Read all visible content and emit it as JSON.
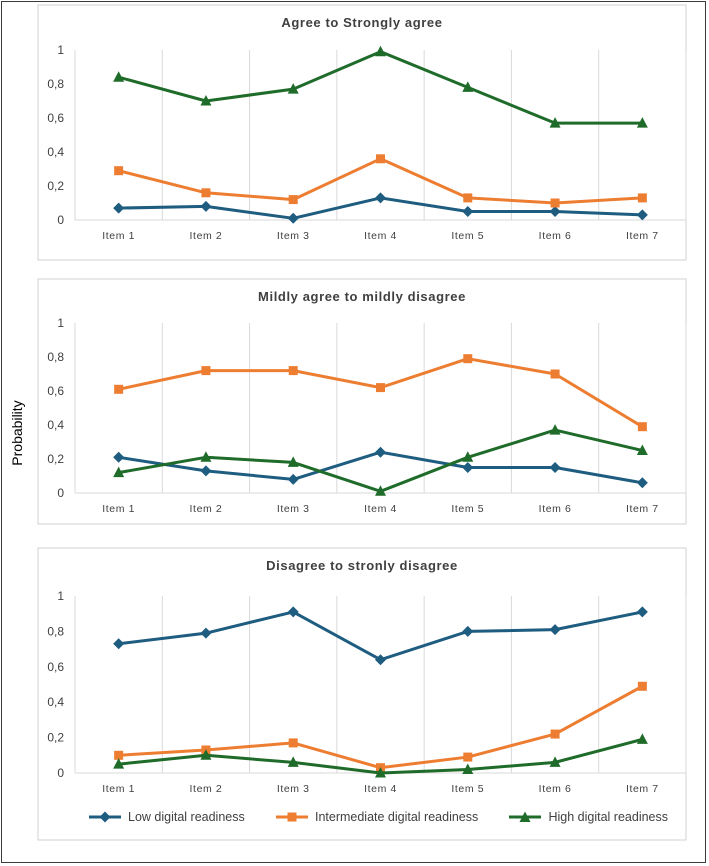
{
  "figure": {
    "ylabel": "Probability"
  },
  "legend": [
    {
      "name": "Low digital readiness",
      "color": "#1e5c80",
      "marker": "diamond"
    },
    {
      "name": "Intermediate digital readiness",
      "color": "#ed7d31",
      "marker": "square"
    },
    {
      "name": "High digital readiness",
      "color": "#1f6b2a",
      "marker": "triangle"
    }
  ],
  "chart_data": [
    {
      "type": "line",
      "title": "Agree to Strongly agree",
      "categories": [
        "Item 1",
        "Item 2",
        "Item 3",
        "Item 4",
        "Item 5",
        "Item 6",
        "Item 7"
      ],
      "ylim": [
        0,
        1
      ],
      "yticks": [
        "0",
        "0,2",
        "0,4",
        "0,6",
        "0,8",
        "1"
      ],
      "series": [
        {
          "name": "Low digital readiness",
          "values": [
            0.07,
            0.08,
            0.01,
            0.13,
            0.05,
            0.05,
            0.03
          ]
        },
        {
          "name": "Intermediate digital readiness",
          "values": [
            0.29,
            0.16,
            0.12,
            0.36,
            0.13,
            0.1,
            0.13
          ]
        },
        {
          "name": "High digital readiness",
          "values": [
            0.84,
            0.7,
            0.77,
            0.99,
            0.78,
            0.57,
            0.57
          ]
        }
      ]
    },
    {
      "type": "line",
      "title": "Mildly agree to mildly disagree",
      "categories": [
        "Item 1",
        "Item 2",
        "Item 3",
        "Item 4",
        "Item 5",
        "Item 6",
        "Item 7"
      ],
      "ylim": [
        0,
        1
      ],
      "yticks": [
        "0",
        "0,2",
        "0,4",
        "0,6",
        "0,8",
        "1"
      ],
      "series": [
        {
          "name": "Low digital readiness",
          "values": [
            0.21,
            0.13,
            0.08,
            0.24,
            0.15,
            0.15,
            0.06
          ]
        },
        {
          "name": "Intermediate digital readiness",
          "values": [
            0.61,
            0.72,
            0.72,
            0.62,
            0.79,
            0.7,
            0.39
          ]
        },
        {
          "name": "High digital readiness",
          "values": [
            0.12,
            0.21,
            0.18,
            0.01,
            0.21,
            0.37,
            0.25
          ]
        }
      ]
    },
    {
      "type": "line",
      "title": "Disagree to stronly disagree",
      "categories": [
        "Item 1",
        "Item 2",
        "Item 3",
        "Item 4",
        "Item 5",
        "Item 6",
        "Item 7"
      ],
      "ylim": [
        0,
        1
      ],
      "yticks": [
        "0",
        "0,2",
        "0,4",
        "0,6",
        "0,8",
        "1"
      ],
      "series": [
        {
          "name": "Low digital readiness",
          "values": [
            0.73,
            0.79,
            0.91,
            0.64,
            0.8,
            0.81,
            0.91
          ]
        },
        {
          "name": "Intermediate digital readiness",
          "values": [
            0.1,
            0.13,
            0.17,
            0.03,
            0.09,
            0.22,
            0.49
          ]
        },
        {
          "name": "High digital readiness",
          "values": [
            0.05,
            0.1,
            0.06,
            0.0,
            0.02,
            0.06,
            0.19
          ]
        }
      ]
    }
  ]
}
